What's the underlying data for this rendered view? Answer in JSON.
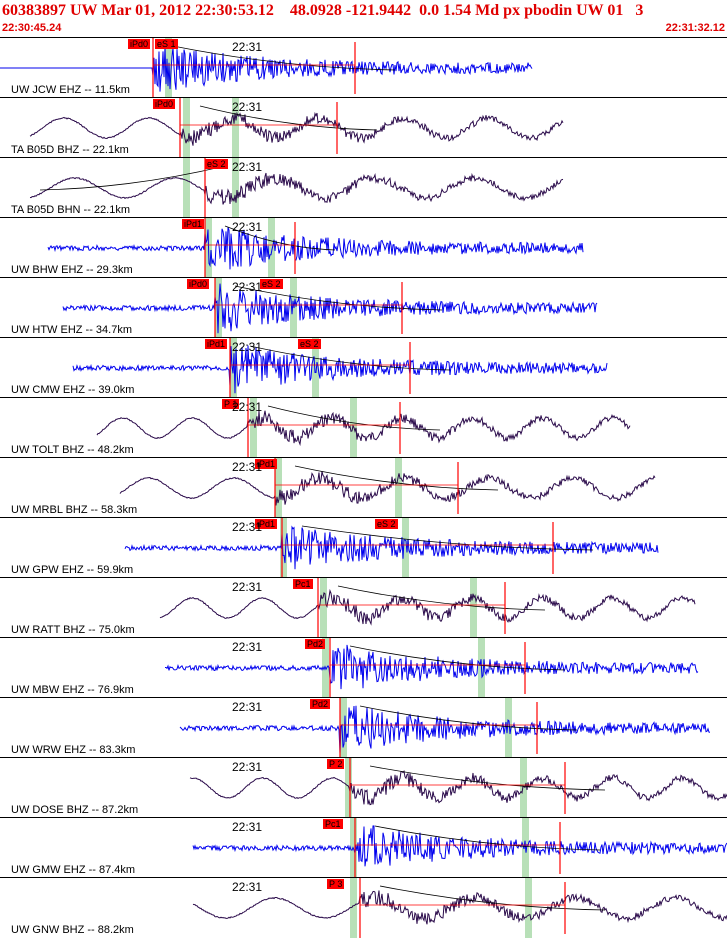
{
  "header": {
    "title": "60383897 UW Mar 01, 2012 22:30:53.12    48.0928 -121.9442  0.0 1.54 Md px pbodin UW 01   3",
    "start_time": "22:30:45.24",
    "end_time": "22:31:32.12"
  },
  "colors": {
    "blue": "#0000ee",
    "purple": "#2a0a4a",
    "red": "#ff0000",
    "green": "#b8e0b8"
  },
  "panels": [
    {
      "label": "UW JCW EHZ -- 11.5km",
      "time": "22:31",
      "color": "blue",
      "picks": [
        "iPd0",
        "eS 1"
      ]
    },
    {
      "label": "TA B05D BHZ -- 22.1km",
      "time": "22:31",
      "color": "purple",
      "picks": [
        "iPd0"
      ]
    },
    {
      "label": "TA B05D BHN -- 22.1km",
      "time": "22:31",
      "color": "purple",
      "picks": [
        "eS 2"
      ]
    },
    {
      "label": "UW BHW EHZ -- 29.3km",
      "time": "22:31",
      "color": "blue",
      "picks": [
        "iPd1"
      ]
    },
    {
      "label": "UW HTW EHZ -- 34.7km",
      "time": "22:31",
      "color": "blue",
      "picks": [
        "iPd0",
        "eS 2"
      ]
    },
    {
      "label": "UW CMW EHZ -- 39.0km",
      "time": "22:31",
      "color": "blue",
      "picks": [
        "iPd1",
        "eS 2"
      ]
    },
    {
      "label": "UW TOLT BHZ -- 48.2km",
      "time": "22:31",
      "color": "purple",
      "picks": [
        "P 1"
      ]
    },
    {
      "label": "UW MRBL BHZ -- 58.3km",
      "time": "22:31",
      "color": "purple",
      "picks": [
        "iPd1"
      ]
    },
    {
      "label": "UW GPW EHZ -- 59.9km",
      "time": "22:31",
      "color": "blue",
      "picks": [
        "iPd1",
        "eS 2"
      ]
    },
    {
      "label": "UW RATT BHZ -- 75.0km",
      "time": "22:31",
      "color": "purple",
      "picks": [
        "Pc1"
      ]
    },
    {
      "label": "UW MBW EHZ -- 76.9km",
      "time": "22:31",
      "color": "blue",
      "picks": [
        "Pd2"
      ]
    },
    {
      "label": "UW WRW EHZ -- 83.3km",
      "time": "22:31",
      "color": "blue",
      "picks": [
        "Pd2"
      ]
    },
    {
      "label": "UW DOSE BHZ -- 87.2km",
      "time": "22:31",
      "color": "purple",
      "picks": [
        "P 2"
      ]
    },
    {
      "label": "UW GMW EHZ -- 87.4km",
      "time": "22:31",
      "color": "blue",
      "picks": [
        "Pc1"
      ]
    },
    {
      "label": "UW GNW BHZ -- 88.2km",
      "time": "22:31",
      "color": "purple",
      "picks": [
        "P 3"
      ]
    }
  ]
}
